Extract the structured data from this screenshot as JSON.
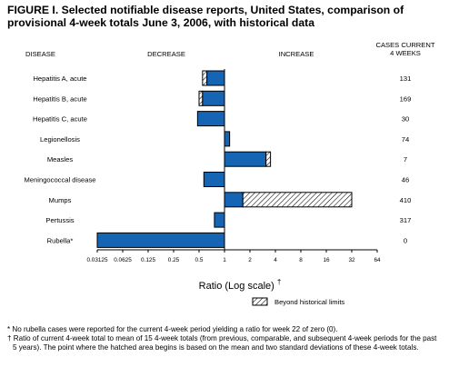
{
  "title": "FIGURE I. Selected notifiable disease reports, United States, comparison of provisional 4-week totals June 3, 2006, with historical data",
  "colors": {
    "bar": "#1565b4",
    "edge": "#000000",
    "hatch": "#000000"
  },
  "chart_data": {
    "type": "bar",
    "orientation": "horizontal",
    "xscale": "log2",
    "xlim": [
      0.03125,
      64
    ],
    "xticks": [
      "0.03125",
      "0.0625",
      "0.125",
      "0.25",
      "0.5",
      "1",
      "2",
      "4",
      "8",
      "16",
      "32",
      "64"
    ],
    "xlabel": "Ratio (Log scale)",
    "xlabel_mark": "†",
    "col_headers": {
      "disease": "DISEASE",
      "decrease": "DECREASE",
      "increase": "INCREASE",
      "cases": "CASES CURRENT 4 WEEKS"
    },
    "categories": [
      "Hepatitis A, acute",
      "Hepatitis B, acute",
      "Hepatitis C, acute",
      "Legionellosis",
      "Measles",
      "Meningococcal disease",
      "Mumps",
      "Pertussis",
      "Rubella*"
    ],
    "values": [
      0.55,
      0.5,
      0.48,
      1.15,
      3.5,
      0.57,
      32,
      0.76,
      0.03125
    ],
    "beyond_limits_from": [
      0.62,
      0.55,
      null,
      null,
      3.1,
      null,
      1.65,
      null,
      null
    ],
    "cases": [
      "131",
      "169",
      "30",
      "74",
      "7",
      "46",
      "410",
      "317",
      "0"
    ],
    "legend": {
      "label": "Beyond historical limits",
      "position": "bottom-right"
    }
  },
  "footnotes": [
    "* No rubella cases were reported for the current 4-week period yielding a ratio for week 22 of zero (0).",
    "† Ratio of current 4-week total to mean of 15 4-week totals (from previous, comparable, and subsequent 4-week periods for the past 5 years). The point where the hatched area begins is based on the mean and two standard deviations of these 4-week totals."
  ]
}
